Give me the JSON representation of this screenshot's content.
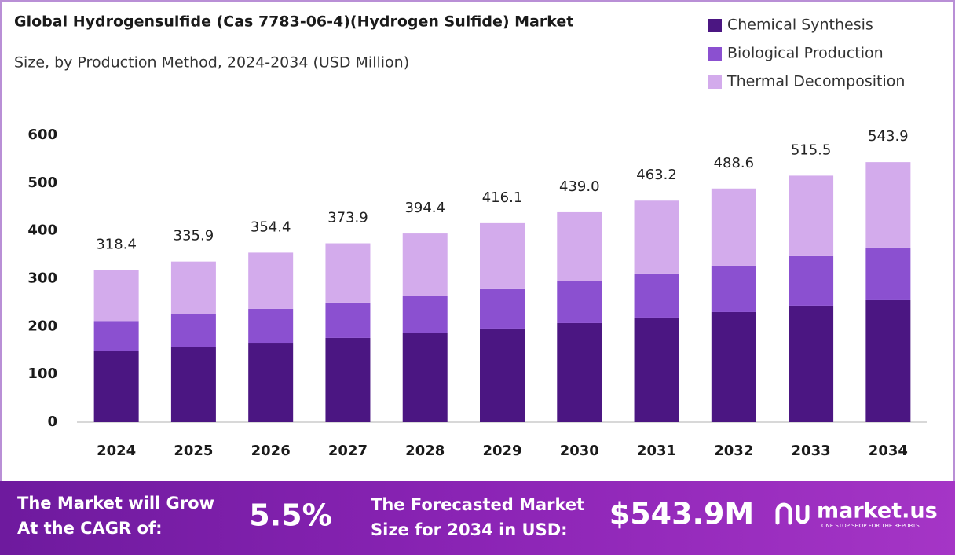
{
  "chart_data": {
    "type": "stacked-bar",
    "title": "Global Hydrogensulfide (Cas 7783-06-4)(Hydrogen Sulfide) Market",
    "subtitle": "Size, by Production Method, 2024-2034 (USD Million)",
    "categories": [
      "2024",
      "2025",
      "2026",
      "2027",
      "2028",
      "2029",
      "2030",
      "2031",
      "2032",
      "2033",
      "2034"
    ],
    "series": [
      {
        "name": "Chemical Synthesis",
        "color": "#4b1682",
        "values": [
          149.6,
          157.8,
          166.0,
          176.0,
          185.8,
          195.7,
          207.2,
          218.7,
          230.2,
          243.4,
          256.5
        ]
      },
      {
        "name": "Biological Production",
        "color": "#8b50d0",
        "values": [
          62.0,
          67.5,
          70.8,
          74.0,
          78.9,
          83.9,
          87.1,
          92.1,
          97.0,
          103.6,
          108.5
        ]
      },
      {
        "name": "Thermal Decomposition",
        "color": "#d3abec",
        "values": [
          106.8,
          110.6,
          117.6,
          123.9,
          129.7,
          136.5,
          144.7,
          152.4,
          161.4,
          168.5,
          178.9
        ]
      }
    ],
    "totals": [
      318.4,
      335.9,
      354.4,
      373.9,
      394.4,
      416.1,
      439.0,
      463.2,
      488.6,
      515.5,
      543.9
    ],
    "totals_labels": [
      "318.4",
      "335.9",
      "354.4",
      "373.9",
      "394.4",
      "416.1",
      "439.0",
      "463.2",
      "488.6",
      "515.5",
      "543.9"
    ],
    "ylim": [
      0,
      600
    ],
    "yticks": [
      0,
      100,
      200,
      300,
      400,
      500,
      600
    ],
    "legend": "top-right",
    "grid": false
  },
  "footer": {
    "cagr_label": [
      "The Market will Grow",
      "At the CAGR of:"
    ],
    "cagr": "5.5%",
    "forecast_label": [
      "The Forecasted Market",
      "Size for 2034 in USD:"
    ],
    "forecast": "$543.9M",
    "brand": "market.us",
    "tagline": "ONE STOP SHOP FOR THE REPORTS"
  }
}
